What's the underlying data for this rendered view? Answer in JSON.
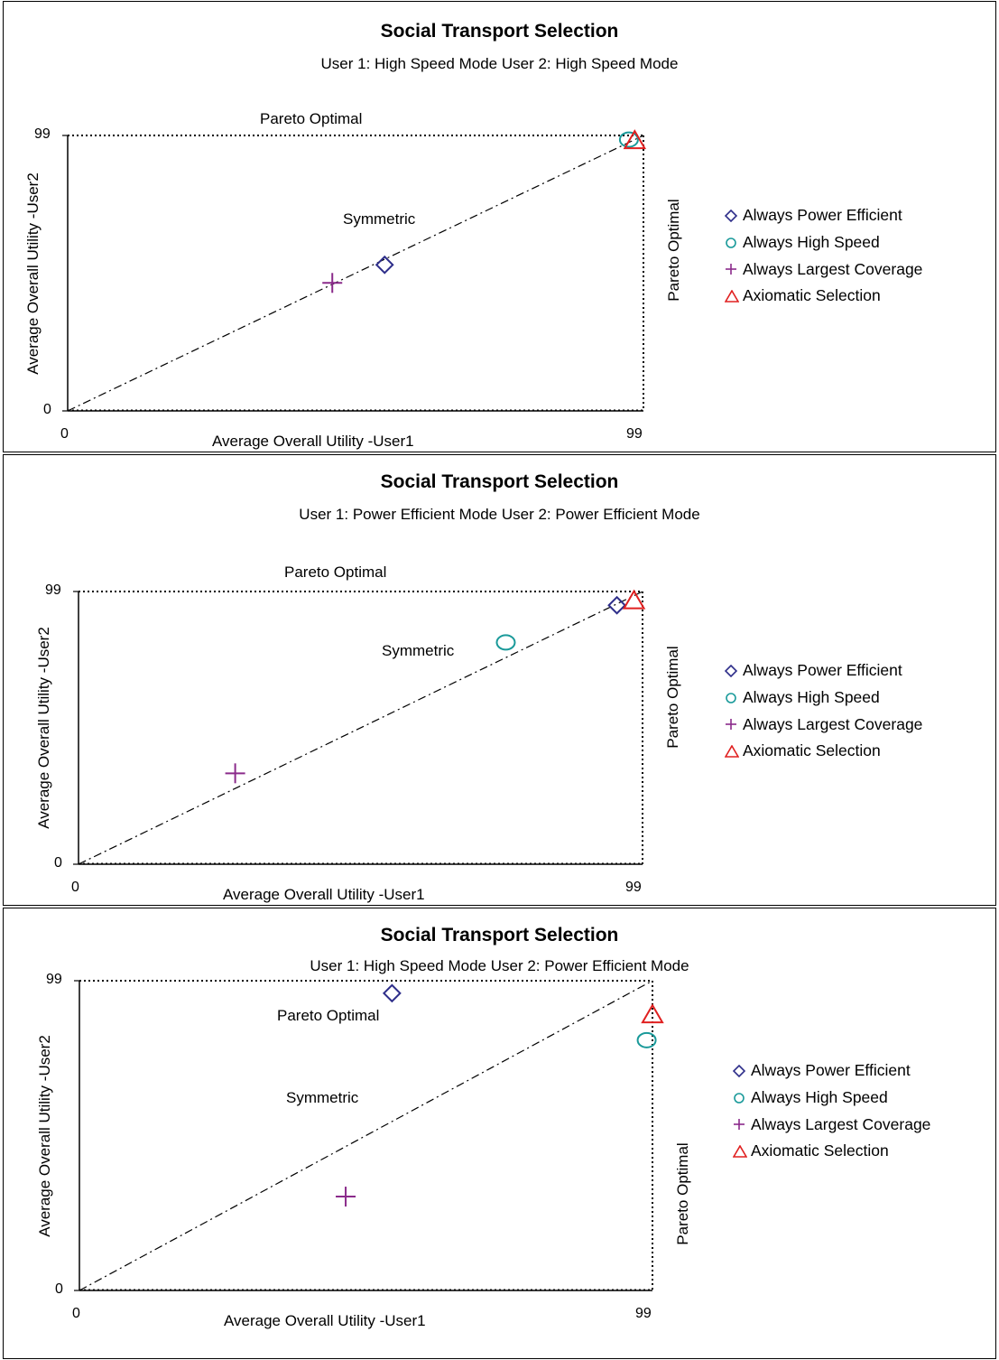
{
  "panels": [
    {
      "title": "Social Transport Selection",
      "subtitle": "User 1: High Speed Mode  User 2: High Speed Mode",
      "pareto_top_label": "Pareto Optimal",
      "pareto_right_label": "Pareto Optimal",
      "symmetric_label": "Symmetric",
      "xlabel": "Average Overall Utility -User1",
      "ylabel": "Average Overall Utility -User2",
      "x_ticks": [
        "0",
        "99"
      ],
      "y_ticks": [
        "0",
        "99"
      ],
      "legend": [
        "Always Power Efficient",
        "Always High Speed",
        "Always Largest Coverage",
        "Axiomatic Selection"
      ]
    },
    {
      "title": "Social Transport Selection",
      "subtitle": "User 1: Power Efficient Mode User 2: Power Efficient Mode",
      "pareto_top_label": "Pareto Optimal",
      "pareto_right_label": "Pareto Optimal",
      "symmetric_label": "Symmetric",
      "xlabel": "Average Overall Utility -User1",
      "ylabel": "Average Overall Utility -User2",
      "x_ticks": [
        "0",
        "99"
      ],
      "y_ticks": [
        "0",
        "99"
      ],
      "legend": [
        "Always Power Efficient",
        "Always High Speed",
        "Always Largest Coverage",
        "Axiomatic Selection"
      ]
    },
    {
      "title": "Social Transport Selection",
      "subtitle": "User 1: High Speed Mode  User 2: Power Efficient Mode",
      "pareto_top_label": "Pareto Optimal",
      "pareto_right_label": "Pareto Optimal",
      "symmetric_label": "Symmetric",
      "xlabel": "Average Overall Utility -User1",
      "ylabel": "Average Overall Utility -User2",
      "x_ticks": [
        "0",
        "99"
      ],
      "y_ticks": [
        "0",
        "99"
      ],
      "legend": [
        "Always Power Efficient",
        "Always High Speed",
        "Always Largest Coverage",
        "Axiomatic Selection"
      ]
    }
  ],
  "colors": {
    "power_efficient": "#2e2e8a",
    "high_speed": "#1a9a9a",
    "largest_coverage": "#8a2a8a",
    "axiomatic": "#e02020",
    "frame": "#000000"
  },
  "chart_data": [
    {
      "type": "scatter",
      "title": "Social Transport Selection",
      "subtitle": "User 1: High Speed Mode  User 2: High Speed Mode",
      "xlabel": "Average Overall Utility -User1",
      "ylabel": "Average Overall Utility -User2",
      "xlim": [
        0,
        99
      ],
      "ylim": [
        0,
        99
      ],
      "series": [
        {
          "name": "Always Power Efficient",
          "marker": "diamond",
          "x": [
            54.5
          ],
          "y": [
            52.5
          ]
        },
        {
          "name": "Always High Speed",
          "marker": "circle",
          "x": [
            96.5
          ],
          "y": [
            97.5
          ]
        },
        {
          "name": "Always Largest Coverage",
          "marker": "plus",
          "x": [
            45.5
          ],
          "y": [
            46
          ]
        },
        {
          "name": "Axiomatic Selection",
          "marker": "triangle",
          "x": [
            97.5
          ],
          "y": [
            97
          ]
        }
      ],
      "reference_lines": [
        {
          "label": "Symmetric",
          "from": [
            0,
            0
          ],
          "to": [
            99,
            99
          ],
          "style": "dash-dot"
        }
      ],
      "frontier_label": "Pareto Optimal"
    },
    {
      "type": "scatter",
      "title": "Social Transport Selection",
      "subtitle": "User 1: Power Efficient Mode User 2: Power Efficient Mode",
      "xlabel": "Average Overall Utility -User1",
      "ylabel": "Average Overall Utility -User2",
      "xlim": [
        0,
        99
      ],
      "ylim": [
        0,
        99
      ],
      "series": [
        {
          "name": "Always Power Efficient",
          "marker": "diamond",
          "x": [
            94.5
          ],
          "y": [
            94
          ]
        },
        {
          "name": "Always High Speed",
          "marker": "circle",
          "x": [
            75
          ],
          "y": [
            80.5
          ]
        },
        {
          "name": "Always Largest Coverage",
          "marker": "plus",
          "x": [
            27.5
          ],
          "y": [
            33
          ]
        },
        {
          "name": "Axiomatic Selection",
          "marker": "triangle",
          "x": [
            97.5
          ],
          "y": [
            95.5
          ]
        }
      ],
      "reference_lines": [
        {
          "label": "Symmetric",
          "from": [
            0,
            0
          ],
          "to": [
            99,
            99
          ],
          "style": "dash-dot"
        }
      ],
      "frontier_label": "Pareto Optimal"
    },
    {
      "type": "scatter",
      "title": "Social Transport Selection",
      "subtitle": "User 1: High Speed Mode  User 2: Power Efficient Mode",
      "xlabel": "Average Overall Utility -User1",
      "ylabel": "Average Overall Utility -User2",
      "xlim": [
        0,
        99
      ],
      "ylim": [
        0,
        99
      ],
      "series": [
        {
          "name": "Always Power Efficient",
          "marker": "diamond",
          "x": [
            54
          ],
          "y": [
            95
          ]
        },
        {
          "name": "Always High Speed",
          "marker": "circle",
          "x": [
            98
          ],
          "y": [
            80
          ]
        },
        {
          "name": "Always Largest Coverage",
          "marker": "plus",
          "x": [
            46
          ],
          "y": [
            30
          ]
        },
        {
          "name": "Axiomatic Selection",
          "marker": "triangle",
          "x": [
            99
          ],
          "y": [
            88
          ]
        }
      ],
      "reference_lines": [
        {
          "label": "Symmetric",
          "from": [
            0,
            0
          ],
          "to": [
            99,
            99
          ],
          "style": "dash-dot"
        }
      ],
      "frontier_label": "Pareto Optimal"
    }
  ]
}
